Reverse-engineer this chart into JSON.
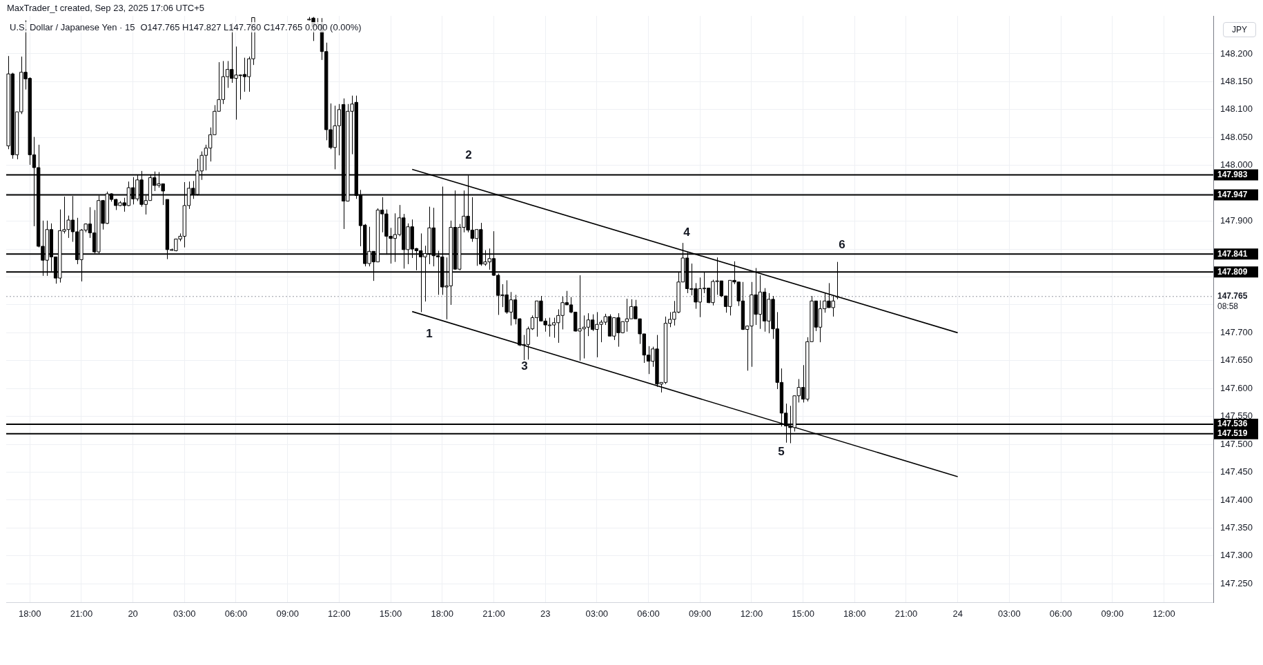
{
  "chart_data": {
    "type": "candlestick",
    "title": "U.S. Dollar / Japanese Yen · 15",
    "subtitle": "O147.765 H147.827 L147.760 C147.765 0.000 (0.00%)",
    "ylabel": "JPY",
    "annotations": [
      "MaxTrader_t created, Sep 23, 2025 17:06 UTC+5",
      "1",
      "2",
      "3",
      "4",
      "5",
      "6"
    ],
    "colors": [
      "#ffffff",
      "#000000",
      "#ffffff",
      "#ffffff",
      "#000000",
      "#000000",
      "#000000",
      "#000000",
      "#000000",
      "#ffffff",
      "#000000",
      "#000000",
      "#ffffff",
      "#ffffff",
      "#ffffff",
      "#000000",
      "#000000",
      "#ffffff",
      "#ffffff",
      "#000000",
      "#000000",
      "#ffffff",
      "#000000",
      "#ffffff",
      "#000000",
      "#000000",
      "#ffffff",
      "#000000",
      "#ffffff",
      "#000000",
      "#ffffff",
      "#000000",
      "#ffffff",
      "#ffffff",
      "#000000",
      "#ffffff",
      "#000000",
      "#000000",
      "#ffffff",
      "#ffffff",
      "#ffffff",
      "#ffffff",
      "#ffffff",
      "#000000",
      "#ffffff",
      "#ffffff",
      "#ffffff",
      "#ffffff",
      "#ffffff",
      "#ffffff",
      "#ffffff",
      "#ffffff",
      "#000000",
      "#ffffff",
      "#ffffff",
      "#000000",
      "#ffffff",
      "#ffffff",
      null,
      null,
      null,
      null,
      null,
      null,
      null,
      null,
      null,
      null,
      null,
      null,
      "#ffffff",
      "#000000",
      "#ffffff",
      "#000000",
      "#000000",
      "#000000",
      "#ffffff",
      "#ffffff",
      "#000000",
      "#ffffff",
      "#ffffff",
      "#000000",
      "#000000",
      "#000000",
      "#ffffff",
      "#000000",
      "#ffffff",
      "#000000",
      "#000000",
      "#000000",
      "#ffffff",
      "#ffffff",
      "#000000",
      "#ffffff",
      "#000000",
      "#000000",
      "#000000",
      "#ffffff",
      "#ffffff",
      "#000000",
      "#000000",
      "#000000",
      "#ffffff",
      "#ffffff",
      "#000000",
      "#ffffff",
      "#ffffff",
      "#000000",
      "#000000",
      "#ffffff",
      "#000000",
      "#ffffff",
      "#ffffff",
      "#000000",
      "#000000",
      "#ffffff",
      "#000000",
      "#ffffff",
      "#000000",
      "#000000",
      "#ffffff",
      "#ffffff",
      "#ffffff",
      "#ffffff",
      "#000000",
      "#000000",
      "#ffffff",
      "#ffffff",
      "#ffffff",
      "#ffffff",
      "#000000",
      "#000000",
      "#000000",
      "#ffffff",
      "#ffffff",
      "#ffffff",
      "#000000",
      "#ffffff",
      "#ffffff",
      "#ffffff",
      "#000000",
      "#ffffff",
      "#000000",
      "#ffffff",
      "#ffffff",
      "#ffffff",
      "#000000",
      "#000000",
      "#000000",
      "#000000",
      "#ffffff",
      "#000000",
      "#ffffff",
      "#ffffff",
      "#ffffff",
      "#ffffff",
      "#ffffff",
      "#ffffff",
      "#000000",
      "#ffffff",
      "#000000",
      "#ffffff",
      "#ffffff",
      "#000000",
      "#ffffff",
      "#ffffff",
      "#000000",
      "#000000",
      "#ffffff",
      "#000000",
      "#000000",
      "#000000",
      "#ffffff",
      "#ffffff",
      "#000000",
      "#ffffff",
      "#000000",
      "#ffffff",
      "#000000",
      "#000000",
      "#000000",
      "#000000",
      "#000000",
      "#ffffff",
      "#ffffff",
      "#000000",
      "#ffffff",
      "#ffffff",
      "#000000",
      "#ffffff",
      "#ffffff",
      "#000000",
      "#ffffff",
      "#ffffff",
      null,
      null,
      null,
      null,
      null,
      null,
      null,
      null,
      null,
      null,
      null,
      null,
      null,
      null,
      null,
      null,
      null,
      null,
      null,
      null,
      null,
      null,
      null,
      null,
      null,
      null,
      null,
      null,
      null,
      null,
      null,
      null,
      null,
      null,
      null,
      null,
      null,
      null,
      null,
      null,
      null,
      null,
      null,
      null,
      null,
      null,
      null,
      null,
      null,
      null,
      null,
      null,
      null,
      null,
      null,
      null,
      null,
      null,
      null,
      null,
      null,
      null,
      null,
      null,
      null,
      null,
      null,
      null,
      null,
      null,
      null,
      null,
      null,
      null,
      null,
      null,
      null,
      null,
      null,
      null,
      null,
      null,
      null,
      null,
      null,
      null,
      null
    ],
    "categories": [
      null,
      null,
      null,
      null,
      null,
      "18:00",
      null,
      null,
      null,
      null,
      null,
      null,
      null,
      null,
      null,
      null,
      null,
      "21:00",
      null,
      null,
      null,
      null,
      null,
      null,
      null,
      null,
      null,
      null,
      null,
      "20",
      null,
      null,
      null,
      null,
      null,
      null,
      null,
      null,
      null,
      null,
      null,
      "03:00",
      null,
      null,
      null,
      null,
      null,
      null,
      null,
      null,
      null,
      null,
      null,
      "06:00",
      null,
      null,
      null,
      null,
      null,
      null,
      null,
      null,
      null,
      null,
      null,
      "09:00",
      null,
      null,
      null,
      null,
      null,
      null,
      null,
      null,
      null,
      null,
      null,
      "12:00",
      null,
      null,
      null,
      null,
      null,
      null,
      null,
      null,
      null,
      null,
      null,
      "15:00",
      null,
      null,
      null,
      null,
      null,
      null,
      null,
      null,
      null,
      null,
      null,
      "18:00",
      null,
      null,
      null,
      null,
      null,
      null,
      null,
      null,
      null,
      null,
      null,
      "21:00",
      null,
      null,
      null,
      null,
      null,
      null,
      null,
      null,
      null,
      null,
      null,
      "23",
      null,
      null,
      null,
      null,
      null,
      null,
      null,
      null,
      null,
      null,
      null,
      "03:00",
      null,
      null,
      null,
      null,
      null,
      null,
      null,
      null,
      null,
      null,
      null,
      "06:00",
      null,
      null,
      null,
      null,
      null,
      null,
      null,
      null,
      null,
      null,
      null,
      "09:00",
      null,
      null,
      null,
      null,
      null,
      null,
      null,
      null,
      null,
      null,
      null,
      "12:00",
      null,
      null,
      null,
      null,
      null,
      null,
      null,
      null,
      null,
      null,
      null,
      "15:00",
      null,
      null,
      null,
      null,
      null,
      null,
      null,
      null,
      null,
      null,
      null,
      "18:00",
      null,
      null,
      null,
      null,
      null,
      null,
      null,
      null,
      null,
      null,
      null,
      "21:00",
      null,
      null,
      null,
      null,
      null,
      null,
      null,
      null,
      null,
      null,
      null,
      "24",
      null,
      null,
      null,
      null,
      null,
      null,
      null,
      null,
      null,
      null,
      null,
      "03:00",
      null,
      null,
      null,
      null,
      null,
      null,
      null,
      null,
      null,
      null,
      null,
      "06:00",
      null,
      null,
      null,
      null,
      null,
      null,
      null,
      null,
      null,
      null,
      null,
      "09:00",
      null,
      null,
      null,
      null,
      null,
      null,
      null,
      null,
      null,
      null,
      null,
      "12:00",
      null,
      null,
      null,
      null,
      null,
      null,
      null,
      null,
      null,
      null,
      null
    ],
    "ohlc": [
      [
        148.035,
        148.196,
        148.029,
        148.164
      ],
      [
        148.164,
        148.166,
        148.012,
        148.019
      ],
      [
        148.019,
        148.096,
        148.011,
        148.096
      ],
      [
        148.096,
        148.195,
        148.092,
        148.167
      ],
      [
        148.167,
        148.26,
        148.136,
        148.155
      ],
      [
        148.156,
        148.158,
        148.001,
        148.019
      ],
      [
        148.019,
        148.051,
        147.891,
        147.996
      ],
      [
        147.996,
        148.037,
        147.853,
        147.855
      ],
      [
        147.855,
        147.901,
        147.802,
        147.83
      ],
      [
        147.83,
        147.901,
        147.802,
        147.885
      ],
      [
        147.885,
        147.896,
        147.81,
        147.836
      ],
      [
        147.836,
        147.836,
        147.788,
        147.798
      ],
      [
        147.798,
        147.921,
        147.79,
        147.883
      ],
      [
        147.882,
        147.944,
        147.878,
        147.885
      ],
      [
        147.885,
        147.91,
        147.87,
        147.902
      ],
      [
        147.902,
        147.945,
        147.863,
        147.881
      ],
      [
        147.881,
        147.906,
        147.823,
        147.831
      ],
      [
        147.831,
        147.886,
        147.792,
        147.884
      ],
      [
        147.884,
        147.896,
        147.88,
        147.895
      ],
      [
        147.895,
        147.925,
        147.87,
        147.879
      ],
      [
        147.879,
        147.92,
        147.842,
        147.845
      ],
      [
        147.845,
        147.946,
        147.842,
        147.937
      ],
      [
        147.937,
        147.938,
        147.885,
        147.896
      ],
      [
        147.896,
        147.953,
        147.895,
        147.949
      ],
      [
        147.949,
        147.95,
        147.935,
        147.939
      ],
      [
        147.939,
        147.94,
        147.92,
        147.928
      ],
      [
        147.928,
        147.936,
        147.927,
        147.933
      ],
      [
        147.933,
        147.942,
        147.917,
        147.928
      ],
      [
        147.928,
        147.971,
        147.927,
        147.96
      ],
      [
        147.96,
        147.979,
        147.93,
        147.94
      ],
      [
        147.94,
        147.983,
        147.936,
        147.974
      ],
      [
        147.974,
        147.99,
        147.926,
        147.93
      ],
      [
        147.93,
        147.946,
        147.912,
        147.937
      ],
      [
        147.937,
        147.983,
        147.937,
        147.978
      ],
      [
        147.978,
        147.989,
        147.954,
        147.964
      ],
      [
        147.964,
        147.988,
        147.96,
        147.967
      ],
      [
        147.967,
        147.967,
        147.929,
        147.954
      ],
      [
        147.939,
        147.939,
        147.832,
        147.849
      ],
      [
        147.849,
        147.851,
        147.847,
        147.849
      ],
      [
        147.847,
        147.868,
        147.846,
        147.868
      ],
      [
        147.868,
        147.878,
        147.864,
        147.873
      ],
      [
        147.873,
        147.97,
        147.853,
        147.928
      ],
      [
        147.928,
        147.971,
        147.922,
        147.959
      ],
      [
        147.959,
        147.972,
        147.94,
        147.948
      ],
      [
        147.948,
        148.012,
        147.946,
        147.99
      ],
      [
        147.99,
        148.025,
        147.974,
        148.018
      ],
      [
        148.018,
        148.037,
        147.991,
        148.031
      ],
      [
        148.031,
        148.068,
        148.007,
        148.055
      ],
      [
        148.055,
        148.108,
        148.055,
        148.097
      ],
      [
        148.097,
        148.185,
        148.097,
        148.118
      ],
      [
        148.118,
        148.187,
        148.11,
        148.159
      ],
      [
        148.159,
        148.187,
        148.139,
        148.172
      ],
      [
        148.172,
        148.255,
        148.148,
        148.156
      ],
      [
        148.156,
        148.213,
        148.082,
        148.162
      ],
      [
        148.162,
        148.163,
        148.118,
        148.162
      ],
      [
        148.163,
        148.193,
        148.132,
        148.159
      ],
      [
        148.159,
        148.195,
        148.132,
        148.191
      ],
      [
        148.191,
        148.265,
        148.18,
        148.265
      ],
      null,
      null,
      null,
      null,
      null,
      null,
      null,
      null,
      null,
      null,
      null,
      null,
      [
        148.262,
        148.266,
        148.26,
        148.262
      ],
      [
        148.264,
        148.266,
        148.223,
        148.249
      ],
      [
        148.249,
        148.264,
        148.245,
        148.253
      ],
      [
        148.253,
        148.264,
        148.189,
        148.204
      ],
      [
        148.204,
        148.22,
        148.045,
        148.064
      ],
      [
        148.064,
        148.111,
        148.029,
        148.032
      ],
      [
        148.032,
        148.107,
        147.993,
        148.071
      ],
      [
        148.071,
        148.11,
        148.018,
        148.1
      ],
      [
        148.109,
        148.12,
        147.886,
        147.936
      ],
      [
        147.936,
        148.11,
        147.936,
        148.097
      ],
      [
        148.097,
        148.125,
        148.02,
        148.11
      ],
      [
        148.113,
        148.125,
        147.94,
        147.946
      ],
      [
        147.946,
        147.956,
        147.855,
        147.892
      ],
      [
        147.893,
        147.895,
        147.819,
        147.824
      ],
      [
        147.824,
        147.89,
        147.819,
        147.846
      ],
      [
        147.846,
        147.846,
        147.793,
        147.827
      ],
      [
        147.827,
        147.923,
        147.827,
        147.92
      ],
      [
        147.92,
        147.943,
        147.88,
        147.913
      ],
      [
        147.913,
        147.921,
        147.84,
        147.873
      ],
      [
        147.873,
        147.888,
        147.824,
        147.869
      ],
      [
        147.869,
        147.914,
        147.827,
        147.876
      ],
      [
        147.876,
        147.929,
        147.873,
        147.906
      ],
      [
        147.906,
        147.913,
        147.815,
        147.849
      ],
      [
        147.849,
        147.896,
        147.823,
        147.89
      ],
      [
        147.89,
        147.903,
        147.834,
        147.85
      ],
      [
        147.851,
        147.852,
        147.812,
        147.847
      ],
      [
        147.847,
        147.878,
        147.737,
        147.836
      ],
      [
        147.836,
        147.856,
        147.756,
        147.842
      ],
      [
        147.842,
        147.926,
        147.823,
        147.888
      ],
      [
        147.888,
        147.924,
        147.819,
        147.838
      ],
      [
        147.838,
        147.847,
        147.768,
        147.836
      ],
      [
        147.836,
        147.962,
        147.768,
        147.782
      ],
      [
        147.782,
        147.835,
        147.724,
        147.784
      ],
      [
        147.784,
        147.901,
        147.75,
        147.889
      ],
      [
        147.889,
        147.955,
        147.813,
        147.814
      ],
      [
        147.814,
        147.895,
        147.812,
        147.889
      ],
      [
        147.889,
        147.955,
        147.88,
        147.909
      ],
      [
        147.909,
        147.982,
        147.88,
        147.884
      ],
      [
        147.884,
        147.943,
        147.863,
        147.869
      ],
      [
        147.869,
        147.886,
        147.82,
        147.885
      ],
      [
        147.885,
        147.897,
        147.82,
        147.823
      ],
      [
        147.823,
        147.848,
        147.82,
        147.827
      ],
      [
        147.827,
        147.851,
        147.813,
        147.833
      ],
      [
        147.833,
        147.882,
        147.802,
        147.803
      ],
      [
        147.803,
        147.806,
        147.732,
        147.767
      ],
      [
        147.767,
        147.787,
        147.746,
        147.768
      ],
      [
        147.768,
        147.794,
        147.734,
        147.737
      ],
      [
        147.737,
        147.773,
        147.713,
        147.759
      ],
      [
        147.759,
        147.768,
        147.715,
        147.725
      ],
      [
        147.725,
        147.726,
        147.676,
        147.678
      ],
      [
        147.678,
        147.696,
        147.651,
        147.679
      ],
      [
        147.679,
        147.711,
        147.652,
        147.707
      ],
      [
        147.707,
        147.731,
        147.705,
        147.727
      ],
      [
        147.727,
        147.757,
        147.693,
        147.757
      ],
      [
        147.757,
        147.766,
        147.721,
        147.721
      ],
      [
        147.721,
        147.726,
        147.702,
        147.714
      ],
      [
        147.714,
        147.727,
        147.693,
        147.714
      ],
      [
        147.714,
        147.727,
        147.691,
        147.718
      ],
      [
        147.718,
        147.742,
        147.682,
        147.731
      ],
      [
        147.731,
        147.765,
        147.706,
        147.754
      ],
      [
        147.754,
        147.775,
        147.75,
        147.75
      ],
      [
        147.75,
        147.764,
        147.735,
        147.737
      ],
      [
        147.737,
        147.737,
        147.702,
        147.703
      ],
      [
        147.703,
        147.803,
        147.65,
        147.707
      ],
      [
        147.707,
        147.731,
        147.654,
        147.71
      ],
      [
        147.71,
        147.735,
        147.694,
        147.723
      ],
      [
        147.723,
        147.733,
        147.703,
        147.706
      ],
      [
        147.706,
        147.737,
        147.656,
        147.715
      ],
      [
        147.715,
        147.723,
        147.683,
        147.719
      ],
      [
        147.719,
        147.734,
        147.714,
        147.729
      ],
      [
        147.729,
        147.733,
        147.694,
        147.694
      ],
      [
        147.694,
        147.727,
        147.687,
        147.727
      ],
      [
        147.727,
        147.735,
        147.675,
        147.7
      ],
      [
        147.7,
        147.72,
        147.699,
        147.72
      ],
      [
        147.72,
        147.761,
        147.702,
        147.725
      ],
      [
        147.725,
        147.76,
        147.725,
        147.747
      ],
      [
        147.747,
        147.759,
        147.725,
        147.725
      ],
      [
        147.725,
        147.725,
        147.68,
        147.698
      ],
      [
        147.698,
        147.698,
        147.646,
        147.66
      ],
      [
        147.66,
        147.676,
        147.626,
        147.649
      ],
      [
        147.649,
        147.675,
        147.639,
        147.671
      ],
      [
        147.671,
        147.696,
        147.603,
        147.608
      ],
      [
        147.608,
        147.611,
        147.593,
        147.611
      ],
      [
        147.611,
        147.729,
        147.608,
        147.717
      ],
      [
        147.717,
        147.737,
        147.71,
        147.724
      ],
      [
        147.724,
        147.757,
        147.713,
        147.737
      ],
      [
        147.737,
        147.809,
        147.735,
        147.791
      ],
      [
        147.791,
        147.861,
        147.791,
        147.834
      ],
      [
        147.834,
        147.845,
        147.771,
        147.779
      ],
      [
        147.779,
        147.824,
        147.767,
        147.779
      ],
      [
        147.779,
        147.789,
        147.743,
        147.755
      ],
      [
        147.755,
        147.799,
        147.728,
        147.779
      ],
      [
        147.779,
        147.808,
        147.771,
        147.78
      ],
      [
        147.78,
        147.78,
        147.753,
        147.754
      ],
      [
        147.754,
        147.795,
        147.749,
        147.792
      ],
      [
        147.792,
        147.835,
        147.768,
        147.793
      ],
      [
        147.793,
        147.793,
        147.764,
        147.766
      ],
      [
        147.766,
        147.766,
        147.736,
        147.747
      ],
      [
        147.747,
        147.794,
        147.731,
        147.794
      ],
      [
        147.794,
        147.828,
        147.787,
        147.791
      ],
      [
        147.791,
        147.791,
        147.748,
        147.757
      ],
      [
        147.757,
        147.791,
        147.705,
        147.706
      ],
      [
        147.706,
        147.713,
        147.632,
        147.712
      ],
      [
        147.712,
        147.791,
        147.639,
        147.768
      ],
      [
        147.768,
        147.816,
        147.714,
        147.733
      ],
      [
        147.733,
        147.803,
        147.707,
        147.773
      ],
      [
        147.773,
        147.78,
        147.702,
        147.721
      ],
      [
        147.721,
        147.771,
        147.699,
        147.76
      ],
      [
        147.76,
        147.766,
        147.689,
        147.707
      ],
      [
        147.707,
        147.737,
        147.599,
        147.611
      ],
      [
        147.611,
        147.636,
        147.532,
        147.556
      ],
      [
        147.556,
        147.573,
        147.503,
        147.533
      ],
      [
        147.533,
        147.569,
        147.502,
        147.53
      ],
      [
        147.53,
        147.587,
        147.523,
        147.587
      ],
      [
        147.587,
        147.617,
        147.575,
        147.602
      ],
      [
        147.602,
        147.642,
        147.575,
        147.581
      ],
      [
        147.581,
        147.692,
        147.577,
        147.684
      ],
      [
        147.684,
        147.766,
        147.684,
        147.757
      ],
      [
        147.757,
        147.757,
        147.703,
        147.71
      ],
      [
        147.71,
        147.758,
        147.683,
        147.743
      ],
      [
        147.743,
        147.771,
        147.736,
        147.757
      ],
      [
        147.757,
        147.789,
        147.745,
        147.745
      ],
      [
        147.745,
        147.766,
        147.729,
        147.757
      ],
      [
        147.765,
        147.827,
        147.76,
        147.765
      ],
      null,
      null,
      null,
      null,
      null,
      null,
      null,
      null,
      null,
      null,
      null,
      null,
      null,
      null,
      null,
      null,
      null,
      null,
      null,
      null,
      null,
      null,
      null,
      null,
      null,
      null,
      null,
      null,
      null,
      null,
      null,
      null,
      null,
      null,
      null,
      null,
      null,
      null,
      null,
      null,
      null,
      null,
      null,
      null,
      null,
      null,
      null,
      null,
      null,
      null,
      null,
      null,
      null,
      null,
      null,
      null,
      null,
      null,
      null,
      null,
      null,
      null,
      null,
      null,
      null,
      null,
      null,
      null,
      null,
      null,
      null,
      null,
      null,
      null,
      null,
      null,
      null,
      null,
      null,
      null,
      null,
      null,
      null,
      null,
      null,
      null,
      null
    ],
    "series": [
      {
        "type": "line",
        "color": "#000000",
        "values": [
          null,
          null,
          null,
          null,
          null,
          null,
          null,
          null,
          null,
          null,
          null,
          null,
          null,
          null,
          null,
          null,
          null,
          null,
          null,
          null,
          null,
          null,
          null,
          null,
          null,
          null,
          null,
          null,
          null,
          null,
          null,
          null,
          null,
          null,
          null,
          null,
          null,
          null,
          null,
          null,
          null,
          null,
          null,
          null,
          null,
          null,
          null,
          null,
          null,
          null,
          null,
          null,
          null,
          null,
          null,
          null,
          null,
          null,
          null,
          null,
          null,
          null,
          null,
          null,
          null,
          null,
          null,
          null,
          null,
          null,
          null,
          null,
          null,
          null,
          null,
          null,
          null,
          null,
          null,
          null,
          null,
          null,
          null,
          null,
          null,
          null,
          null,
          null,
          null,
          null,
          null,
          null,
          null,
          null,
          147.993,
          null,
          null,
          null,
          null,
          null,
          null,
          null,
          null,
          null,
          null,
          null,
          null,
          null,
          null,
          null,
          null,
          null,
          null,
          null,
          null,
          null,
          null,
          null,
          null,
          null,
          null,
          null,
          null,
          null,
          null,
          null,
          null,
          null,
          null,
          null,
          null,
          null,
          null,
          null,
          null,
          null,
          null,
          null,
          null,
          null,
          null,
          null,
          null,
          null,
          null,
          null,
          null,
          null,
          null,
          null,
          null,
          null,
          null,
          null,
          null,
          null,
          null,
          null,
          null,
          null,
          null,
          null,
          null,
          null,
          null,
          null,
          null,
          null,
          null,
          null,
          null,
          null,
          null,
          null,
          null,
          null,
          null,
          null,
          null,
          null,
          null,
          null,
          null,
          null,
          null,
          null,
          null,
          null,
          null,
          null,
          null,
          null,
          null,
          null,
          null,
          null,
          null,
          null,
          null,
          null,
          null,
          null,
          null,
          null,
          null,
          null,
          null,
          null,
          null,
          null,
          null,
          null,
          null,
          null,
          null,
          null,
          null,
          null,
          null,
          null,
          null,
          147.7,
          null,
          null,
          null,
          null,
          null,
          null,
          null,
          null,
          null,
          null,
          null,
          null,
          null,
          null,
          null,
          null,
          null,
          null,
          null,
          null,
          null,
          null,
          null,
          null,
          null,
          null,
          null,
          null,
          null,
          null,
          null,
          null,
          null,
          null,
          null,
          null,
          null,
          null,
          null,
          null,
          null,
          null,
          null,
          null,
          null,
          null,
          null,
          null,
          null,
          null,
          null,
          null,
          null,
          null,
          null,
          null,
          null,
          null,
          null
        ]
      },
      {
        "type": "line",
        "color": "#000000",
        "values": [
          null,
          null,
          null,
          null,
          null,
          null,
          null,
          null,
          null,
          null,
          null,
          null,
          null,
          null,
          null,
          null,
          null,
          null,
          null,
          null,
          null,
          null,
          null,
          null,
          null,
          null,
          null,
          null,
          null,
          null,
          null,
          null,
          null,
          null,
          null,
          null,
          null,
          null,
          null,
          null,
          null,
          null,
          null,
          null,
          null,
          null,
          null,
          null,
          null,
          null,
          null,
          null,
          null,
          null,
          null,
          null,
          null,
          null,
          null,
          null,
          null,
          null,
          null,
          null,
          null,
          null,
          null,
          null,
          null,
          null,
          null,
          null,
          null,
          null,
          null,
          null,
          null,
          null,
          null,
          null,
          null,
          null,
          null,
          null,
          null,
          null,
          null,
          null,
          null,
          null,
          null,
          null,
          null,
          null,
          147.738,
          null,
          null,
          null,
          null,
          null,
          null,
          null,
          null,
          null,
          null,
          null,
          null,
          null,
          null,
          null,
          null,
          null,
          null,
          null,
          null,
          null,
          null,
          null,
          null,
          null,
          null,
          null,
          null,
          null,
          null,
          null,
          null,
          null,
          null,
          null,
          null,
          null,
          null,
          null,
          null,
          null,
          null,
          null,
          null,
          null,
          null,
          null,
          null,
          null,
          null,
          null,
          null,
          null,
          null,
          null,
          null,
          null,
          null,
          null,
          null,
          null,
          null,
          null,
          null,
          null,
          null,
          null,
          null,
          null,
          null,
          null,
          null,
          null,
          null,
          null,
          null,
          null,
          null,
          null,
          null,
          null,
          null,
          null,
          null,
          null,
          null,
          null,
          null,
          null,
          null,
          null,
          null,
          null,
          null,
          null,
          null,
          null,
          null,
          null,
          null,
          null,
          null,
          null,
          null,
          null,
          null,
          null,
          null,
          null,
          null,
          null,
          null,
          null,
          null,
          null,
          null,
          null,
          null,
          null,
          null,
          null,
          null,
          null,
          null,
          null,
          null,
          147.442,
          null,
          null,
          null,
          null,
          null,
          null,
          null,
          null,
          null,
          null,
          null,
          null,
          null,
          null,
          null,
          null,
          null,
          null,
          null,
          null,
          null,
          null,
          null,
          null,
          null,
          null,
          null,
          null,
          null,
          null,
          null,
          null,
          null,
          null,
          null,
          null,
          null,
          null,
          null,
          null,
          null,
          null,
          null,
          null,
          null,
          null,
          null,
          null,
          null,
          null,
          null,
          null,
          null,
          null,
          null,
          null,
          null,
          null,
          null
        ]
      }
    ],
    "ylim": [
      147.217,
      148.268
    ],
    "yticks": [
      {
        "value": 147.25,
        "label": "147.250"
      },
      {
        "value": 147.3,
        "label": "147.300"
      },
      {
        "value": 147.35,
        "label": "147.350"
      },
      {
        "value": 147.4,
        "label": "147.400"
      },
      {
        "value": 147.45,
        "label": "147.450"
      },
      {
        "value": 147.5,
        "label": "147.500"
      },
      {
        "value": 147.55,
        "label": "147.550"
      },
      {
        "value": 147.6,
        "label": "147.600"
      },
      {
        "value": 147.65,
        "label": "147.650"
      },
      {
        "value": 147.7,
        "label": "147.700"
      },
      {
        "value": 147.75,
        "label": null
      },
      {
        "value": 147.8,
        "label": null
      },
      {
        "value": 147.85,
        "label": null
      },
      {
        "value": 147.9,
        "label": "147.900"
      },
      {
        "value": 147.95,
        "label": null
      },
      {
        "value": 148,
        "label": "148.000"
      },
      {
        "value": 148.05,
        "label": "148.050"
      },
      {
        "value": 148.1,
        "label": "148.100"
      },
      {
        "value": 148.15,
        "label": "148.150"
      },
      {
        "value": 148.2,
        "label": "148.200"
      }
    ],
    "ref_lines": [
      {
        "axis": "y",
        "value": 147.983,
        "label": "147.983",
        "color": "#000000"
      },
      {
        "axis": "y",
        "value": 147.947,
        "label": "147.947",
        "color": "#000000"
      },
      {
        "axis": "y",
        "value": 147.841,
        "label": "147.841",
        "color": "#000000"
      },
      {
        "axis": "y",
        "value": 147.809,
        "label": "147.809",
        "color": "#000000"
      },
      {
        "axis": "y",
        "value": 147.536,
        "label": "147.536",
        "color": "#000000"
      },
      {
        "axis": "y",
        "value": 147.519,
        "label": "147.519",
        "color": "#000000"
      },
      {
        "axis": "y",
        "value": 147.765,
        "label": "147.765\n08:58",
        "color": "#9598a1",
        "line_style": "dotted"
      }
    ],
    "grid": true,
    "legend": false
  }
}
